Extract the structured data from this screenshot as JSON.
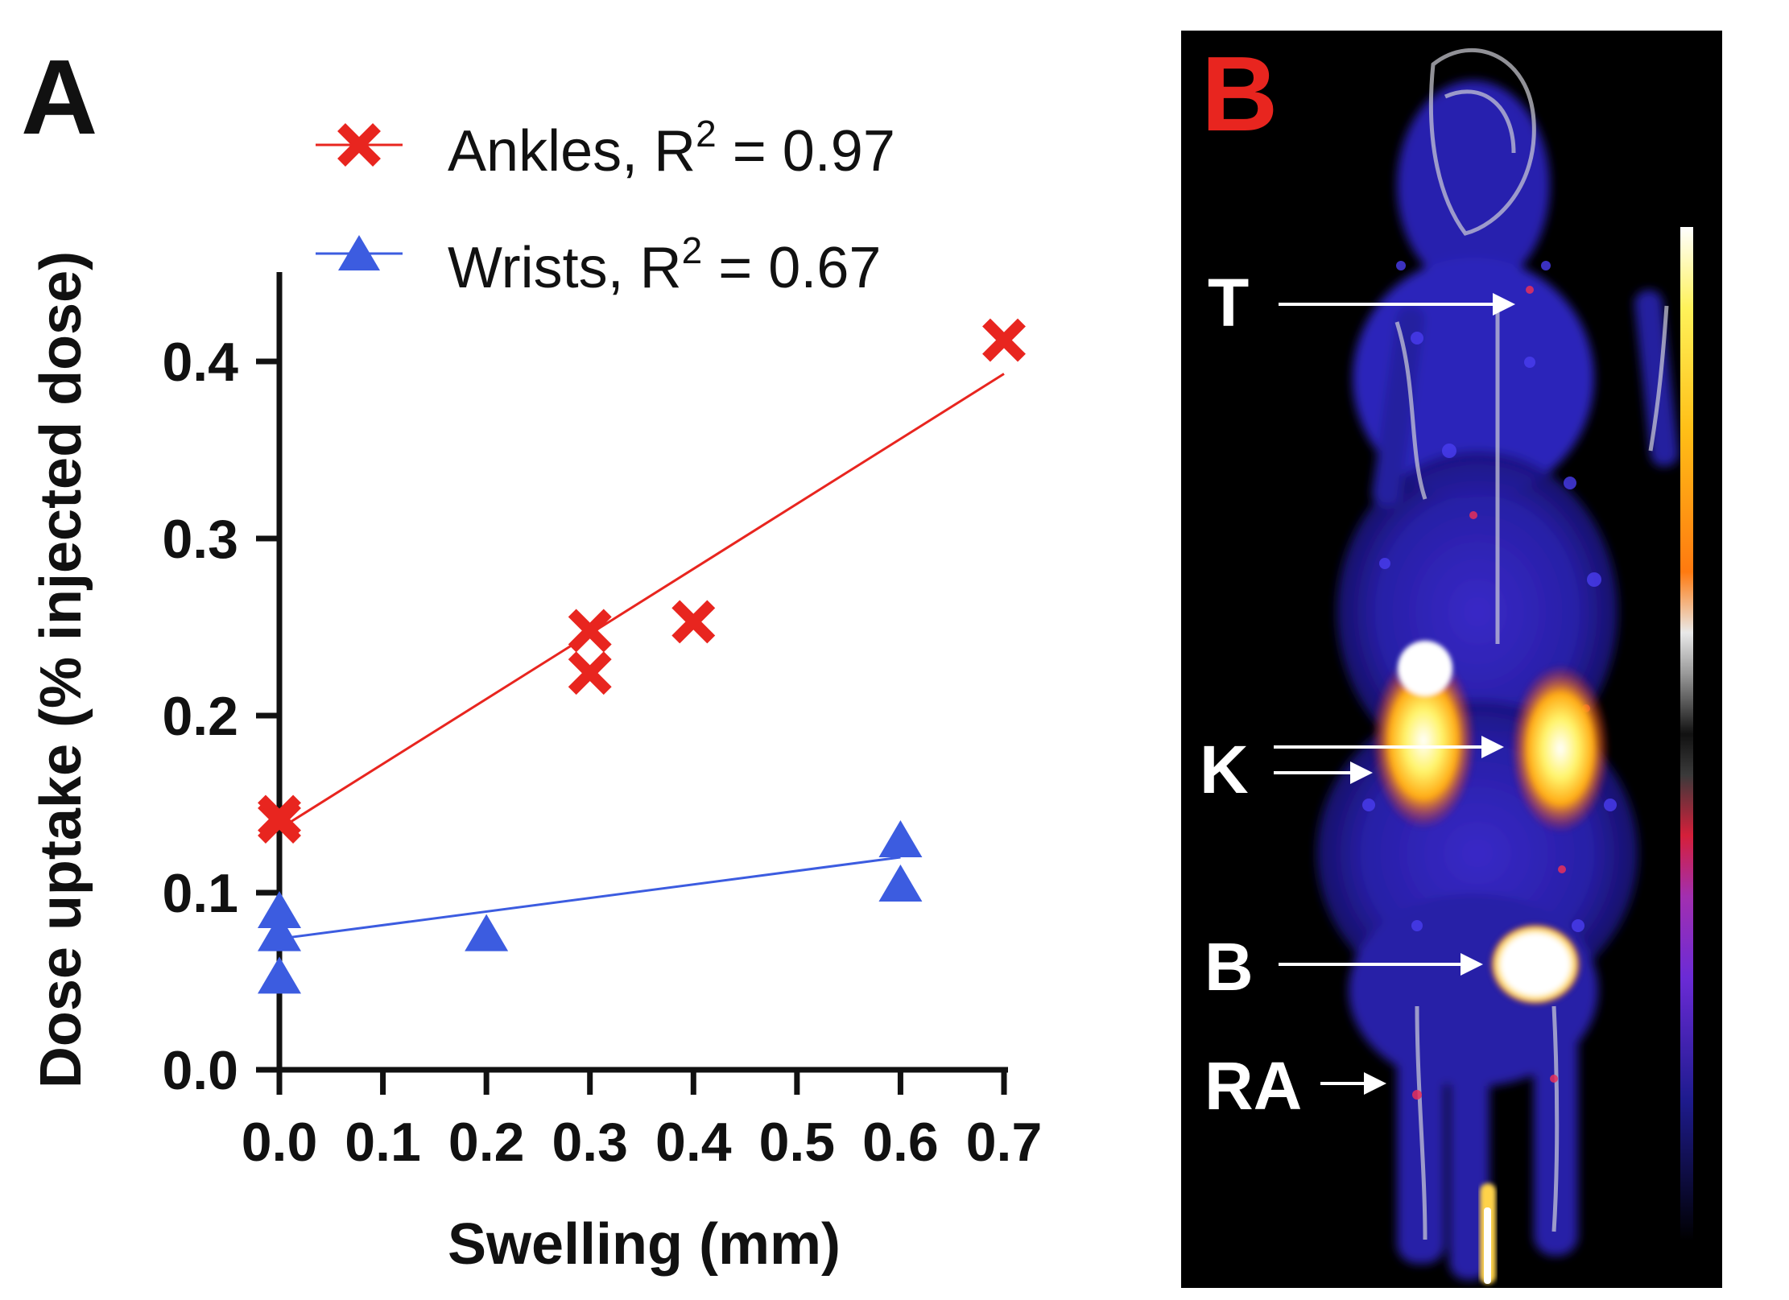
{
  "panel_a": {
    "label": "A"
  },
  "panel_b": {
    "label": "B",
    "annotations": [
      {
        "id": "thyroid",
        "text": "T"
      },
      {
        "id": "kidneys",
        "text": "K"
      },
      {
        "id": "bladder",
        "text": "B"
      },
      {
        "id": "rheumatoid-arthritis",
        "text": "RA"
      }
    ],
    "colors": {
      "label_red": "#e8251f",
      "background": "#000000",
      "annotation": "#ffffff"
    }
  },
  "chart_data": {
    "type": "scatter",
    "title": "",
    "xlabel": "Swelling (mm)",
    "ylabel": "Dose uptake (% injected dose)",
    "xlim": [
      0.0,
      0.7
    ],
    "ylim": [
      0.0,
      0.45
    ],
    "xticks": [
      0.0,
      0.1,
      0.2,
      0.3,
      0.4,
      0.5,
      0.6,
      0.7
    ],
    "xtick_labels": [
      "0.0",
      "0.1",
      "0.2",
      "0.3",
      "0.4",
      "0.5",
      "0.6",
      "0.7"
    ],
    "yticks": [
      0.0,
      0.1,
      0.2,
      0.3,
      0.4
    ],
    "ytick_labels": [
      "0.0",
      "0.1",
      "0.2",
      "0.3",
      "0.4"
    ],
    "grid": false,
    "legend_position": "top",
    "series": [
      {
        "name": "Ankles",
        "legend_prefix": "Ankles, R",
        "superscript": "2",
        "legend_suffix": " = 0.97",
        "marker": "x",
        "color": "#e8251f",
        "points": [
          [
            0.0,
            0.14
          ],
          [
            0.0,
            0.143
          ],
          [
            0.3,
            0.248
          ],
          [
            0.3,
            0.224
          ],
          [
            0.4,
            0.253
          ],
          [
            0.7,
            0.412
          ]
        ],
        "fit": {
          "x": [
            0.0,
            0.7
          ],
          "y": [
            0.136,
            0.393
          ]
        }
      },
      {
        "name": "Wrists",
        "legend_prefix": "Wrists, R",
        "superscript": "2",
        "legend_suffix": " = 0.67",
        "marker": "triangle",
        "color": "#3c5ce0",
        "points": [
          [
            0.0,
            0.09
          ],
          [
            0.0,
            0.077
          ],
          [
            0.0,
            0.053
          ],
          [
            0.2,
            0.077
          ],
          [
            0.6,
            0.13
          ],
          [
            0.6,
            0.105
          ]
        ],
        "fit": {
          "x": [
            0.0,
            0.6
          ],
          "y": [
            0.074,
            0.12
          ]
        }
      }
    ]
  }
}
